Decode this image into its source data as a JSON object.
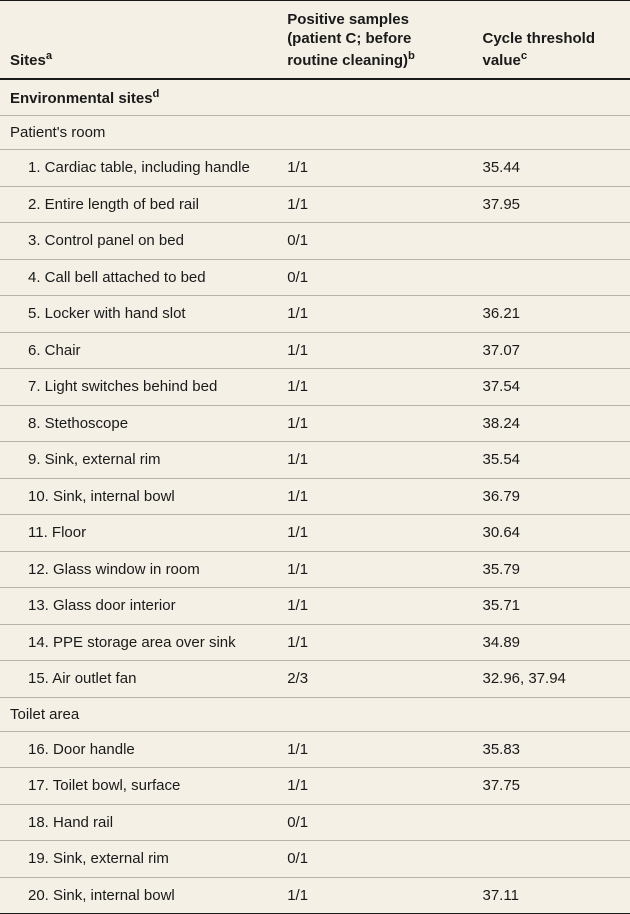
{
  "columns": {
    "sites": "Sites",
    "sites_sup": "a",
    "positive": "Positive samples (patient C; before routine cleaning)",
    "positive_sup": "b",
    "ct": "Cycle threshold value",
    "ct_sup": "c"
  },
  "section_major": {
    "label": "Environmental sites",
    "sup": "d"
  },
  "groups": [
    {
      "label": "Patient's room",
      "rows": [
        {
          "site": "1. Cardiac table, including handle",
          "pos": "1/1",
          "ct": "35.44"
        },
        {
          "site": "2. Entire length of bed rail",
          "pos": "1/1",
          "ct": "37.95"
        },
        {
          "site": "3. Control panel on bed",
          "pos": "0/1",
          "ct": ""
        },
        {
          "site": "4. Call bell attached to bed",
          "pos": "0/1",
          "ct": ""
        },
        {
          "site": "5. Locker with hand slot",
          "pos": "1/1",
          "ct": "36.21"
        },
        {
          "site": "6. Chair",
          "pos": "1/1",
          "ct": "37.07"
        },
        {
          "site": "7. Light switches behind bed",
          "pos": "1/1",
          "ct": "37.54"
        },
        {
          "site": "8. Stethoscope",
          "pos": "1/1",
          "ct": "38.24"
        },
        {
          "site": "9. Sink, external rim",
          "pos": "1/1",
          "ct": "35.54"
        },
        {
          "site": "10. Sink, internal bowl",
          "pos": "1/1",
          "ct": "36.79"
        },
        {
          "site": "11. Floor",
          "pos": "1/1",
          "ct": "30.64"
        },
        {
          "site": "12. Glass window in room",
          "pos": "1/1",
          "ct": "35.79"
        },
        {
          "site": "13. Glass door interior",
          "pos": "1/1",
          "ct": "35.71"
        },
        {
          "site": "14. PPE storage area over sink",
          "pos": "1/1",
          "ct": "34.89"
        },
        {
          "site": "15. Air outlet fan",
          "pos": "2/3",
          "ct": "32.96, 37.94"
        }
      ]
    },
    {
      "label": "Toilet area",
      "rows": [
        {
          "site": "16. Door handle",
          "pos": "1/1",
          "ct": "35.83"
        },
        {
          "site": "17. Toilet bowl, surface",
          "pos": "1/1",
          "ct": "37.75"
        },
        {
          "site": "18. Hand rail",
          "pos": "0/1",
          "ct": ""
        },
        {
          "site": "19. Sink, external rim",
          "pos": "0/1",
          "ct": ""
        },
        {
          "site": "20. Sink, internal bowl",
          "pos": "1/1",
          "ct": "37.11"
        }
      ]
    }
  ]
}
